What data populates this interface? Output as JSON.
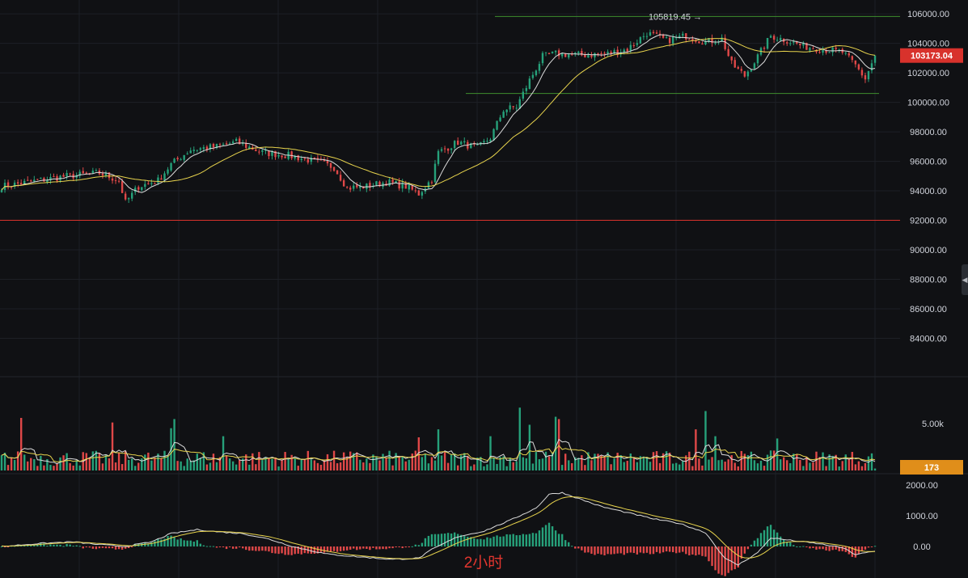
{
  "chart_data": [
    {
      "type": "candlestick",
      "panel": "price",
      "title": "",
      "ylim": [
        82000,
        106500
      ],
      "y_ticks": [
        "106000.00",
        "104000.00",
        "102000.00",
        "100000.00",
        "98000.00",
        "96000.00",
        "94000.00",
        "92000.00",
        "90000.00",
        "88000.00",
        "86000.00",
        "84000.00"
      ],
      "last_price_label": "103173.04",
      "high_marker_label": "105819.45 →",
      "horizontal_lines": [
        {
          "value": 105819.45,
          "color": "#3e8e2e"
        },
        {
          "value": 100600,
          "color": "#3e8e2e"
        },
        {
          "value": 92000,
          "color": "#d8322c"
        }
      ],
      "close_anchors": [
        [
          0,
          94300
        ],
        [
          14,
          94800
        ],
        [
          20,
          95000
        ],
        [
          30,
          95200
        ],
        [
          36,
          94700
        ],
        [
          38,
          93200
        ],
        [
          42,
          94300
        ],
        [
          48,
          94700
        ],
        [
          52,
          95800
        ],
        [
          58,
          96800
        ],
        [
          66,
          97000
        ],
        [
          72,
          97300
        ],
        [
          80,
          96600
        ],
        [
          88,
          96400
        ],
        [
          96,
          96000
        ],
        [
          102,
          95600
        ],
        [
          106,
          94200
        ],
        [
          112,
          94300
        ],
        [
          118,
          94600
        ],
        [
          124,
          94300
        ],
        [
          128,
          93800
        ],
        [
          132,
          94800
        ],
        [
          134,
          96600
        ],
        [
          140,
          97300
        ],
        [
          146,
          96900
        ],
        [
          150,
          97600
        ],
        [
          154,
          99500
        ],
        [
          158,
          99700
        ],
        [
          162,
          101500
        ],
        [
          166,
          103100
        ],
        [
          170,
          103300
        ],
        [
          178,
          103200
        ],
        [
          186,
          103300
        ],
        [
          192,
          103600
        ],
        [
          198,
          104700
        ],
        [
          204,
          104200
        ],
        [
          210,
          104500
        ],
        [
          216,
          104100
        ],
        [
          221,
          104300
        ],
        [
          224,
          102600
        ],
        [
          228,
          101800
        ],
        [
          232,
          103100
        ],
        [
          236,
          104500
        ],
        [
          241,
          104200
        ],
        [
          246,
          103800
        ],
        [
          252,
          103600
        ],
        [
          258,
          103400
        ],
        [
          262,
          102500
        ],
        [
          265,
          101600
        ],
        [
          268,
          103173
        ]
      ],
      "ma_lines": [
        {
          "period": 7,
          "color": "#dcdcdc"
        },
        {
          "period": 25,
          "color": "#e8d44d"
        }
      ],
      "colors": {
        "up": "#26a17a",
        "down": "#e04848",
        "background": "#101114",
        "grid": "#1d2026"
      }
    },
    {
      "type": "bar",
      "panel": "volume",
      "y_ticks": [
        "5.00k"
      ],
      "last_volume_label": "173",
      "max_volume": 5800,
      "volume_spikes": [
        {
          "index": 6,
          "value": 4600
        },
        {
          "index": 34,
          "value": 4200
        },
        {
          "index": 52,
          "value": 3700
        },
        {
          "index": 53,
          "value": 4500
        },
        {
          "index": 68,
          "value": 3000
        },
        {
          "index": 128,
          "value": 2900
        },
        {
          "index": 134,
          "value": 3600
        },
        {
          "index": 150,
          "value": 3000
        },
        {
          "index": 159,
          "value": 5500
        },
        {
          "index": 162,
          "value": 4000
        },
        {
          "index": 170,
          "value": 4700
        },
        {
          "index": 171,
          "value": 4500
        },
        {
          "index": 213,
          "value": 3600
        },
        {
          "index": 216,
          "value": 5200
        },
        {
          "index": 219,
          "value": 3000
        },
        {
          "index": 238,
          "value": 2800
        }
      ],
      "ma_lines": [
        {
          "period": 5,
          "color": "#dcdcdc"
        },
        {
          "period": 10,
          "color": "#e8d44d"
        }
      ],
      "label_color": "#e08e1a"
    },
    {
      "type": "bar",
      "panel": "macd",
      "period_label": "2小时",
      "y_ticks": [
        "2000.00",
        "1000.00",
        "0.00"
      ],
      "ylim": [
        -1000,
        2200
      ],
      "macd_anchors": [
        [
          0,
          0
        ],
        [
          12,
          100
        ],
        [
          22,
          150
        ],
        [
          30,
          60
        ],
        [
          38,
          0
        ],
        [
          46,
          150
        ],
        [
          52,
          420
        ],
        [
          60,
          550
        ],
        [
          66,
          480
        ],
        [
          74,
          420
        ],
        [
          82,
          240
        ],
        [
          90,
          -20
        ],
        [
          100,
          -250
        ],
        [
          110,
          -340
        ],
        [
          120,
          -420
        ],
        [
          128,
          -380
        ],
        [
          132,
          -100
        ],
        [
          140,
          320
        ],
        [
          148,
          500
        ],
        [
          156,
          850
        ],
        [
          164,
          1250
        ],
        [
          168,
          1700
        ],
        [
          172,
          1750
        ],
        [
          176,
          1600
        ],
        [
          184,
          1300
        ],
        [
          192,
          1100
        ],
        [
          200,
          900
        ],
        [
          208,
          750
        ],
        [
          216,
          450
        ],
        [
          222,
          -400
        ],
        [
          226,
          -600
        ],
        [
          232,
          -200
        ],
        [
          236,
          280
        ],
        [
          242,
          200
        ],
        [
          250,
          100
        ],
        [
          258,
          -40
        ],
        [
          262,
          -260
        ],
        [
          268,
          -160
        ]
      ],
      "signal_period": 9,
      "colors": {
        "macd": "#dcdcdc",
        "signal": "#e8d44d",
        "hist_up": "#26a17a",
        "hist_down": "#e04848"
      }
    }
  ]
}
